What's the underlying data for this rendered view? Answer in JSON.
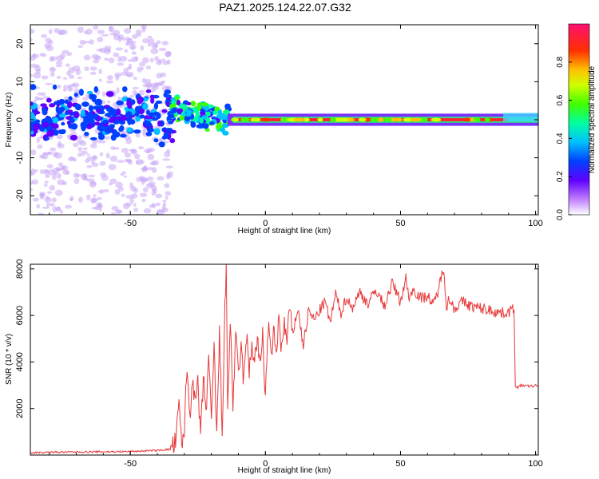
{
  "figure_title": "PAZ1.2025.124.22.07.G32",
  "chart_data": [
    {
      "type": "heatmap",
      "xlabel": "Height of straight line (km)",
      "ylabel": "Frequency (Hz)",
      "xlim": [
        -87,
        101
      ],
      "ylim": [
        -25,
        25
      ],
      "x_ticks": [
        "-50",
        "0",
        "50",
        "100"
      ],
      "y_ticks": [
        "-20",
        "-10",
        "0",
        "10",
        "20"
      ],
      "x_tick_values": [
        -50,
        0,
        50,
        100
      ],
      "y_tick_values": [
        -20,
        -10,
        0,
        10,
        20
      ],
      "colorbar": {
        "label": "Normalized spectral amplitude",
        "range": [
          0,
          1
        ],
        "ticks": [
          "0.0",
          "0.2",
          "0.4",
          "0.6",
          "0.8"
        ],
        "tick_values": [
          0.0,
          0.2,
          0.4,
          0.6,
          0.8
        ],
        "colors": [
          "#ffffff",
          "#a020f0",
          "#3000ff",
          "#0060ff",
          "#00e0ff",
          "#00ff60",
          "#40ff00",
          "#ffff00",
          "#ff8000",
          "#ff0000",
          "#ff1493"
        ]
      },
      "features": [
        {
          "x_range": [
            -87,
            -35
          ],
          "description_level": 0.25,
          "freq_center": 1,
          "freq_spread": 6
        },
        {
          "x_range": [
            -35,
            -15
          ],
          "description_level": 0.45,
          "freq_center": 3,
          "freq_spread": 2.5
        },
        {
          "x_range": [
            -15,
            101
          ],
          "description_level": 0.9,
          "freq_center": 0,
          "freq_spread": 0.5
        }
      ]
    },
    {
      "type": "line",
      "xlabel": "Height of straight line (km)",
      "ylabel": "SNR (10 * v/v)",
      "xlim": [
        -87,
        101
      ],
      "ylim": [
        0,
        8200
      ],
      "x_ticks": [
        "-50",
        "0",
        "50",
        "100"
      ],
      "y_ticks": [
        "2000",
        "4000",
        "6000",
        "8000"
      ],
      "x_tick_values": [
        -50,
        0,
        50,
        100
      ],
      "y_tick_values": [
        2000,
        4000,
        6000,
        8000
      ],
      "color": "#e8393a",
      "series": [
        {
          "x": [
            -87,
            -80,
            -70,
            -60,
            -50,
            -40,
            -35,
            -33,
            -32,
            -31,
            -30,
            -29,
            -28,
            -27,
            -26,
            -25,
            -24,
            -23,
            -22,
            -21,
            -20,
            -19,
            -18,
            -17,
            -16,
            -15,
            -14.5,
            -14,
            -13,
            -12,
            -11,
            -10,
            -9,
            -8,
            -7,
            -6,
            -5,
            -4,
            -3,
            -2,
            -1,
            0,
            1,
            2,
            3,
            4,
            5,
            6,
            7,
            8,
            9,
            10,
            12,
            14,
            16,
            18,
            20,
            22,
            24,
            26,
            28,
            30,
            32,
            35,
            38,
            41,
            44,
            47,
            50,
            52,
            53,
            55,
            58,
            60,
            62,
            64,
            66,
            67,
            68,
            70,
            73,
            76,
            80,
            84,
            88,
            91,
            92,
            92.5,
            93,
            95,
            98,
            101
          ],
          "y": [
            100,
            120,
            130,
            140,
            150,
            200,
            250,
            600,
            2300,
            300,
            1200,
            3800,
            1600,
            3500,
            2000,
            3200,
            600,
            3300,
            1800,
            4300,
            1200,
            4700,
            800,
            5200,
            1000,
            6200,
            8100,
            2000,
            5800,
            2200,
            5000,
            3500,
            4600,
            3100,
            5200,
            3500,
            4800,
            4000,
            5100,
            3600,
            5300,
            2400,
            5600,
            4200,
            5200,
            4400,
            5900,
            4500,
            5600,
            4900,
            6300,
            5200,
            6300,
            4700,
            6200,
            5800,
            6200,
            6600,
            5700,
            6900,
            6100,
            6800,
            6300,
            7000,
            6500,
            7100,
            6400,
            7400,
            6600,
            7600,
            6800,
            7100,
            6700,
            6900,
            6400,
            7100,
            8100,
            6400,
            6700,
            6300,
            6600,
            6400,
            6300,
            6200,
            6100,
            6200,
            6300,
            3000,
            2900,
            3000,
            2950,
            3000
          ]
        }
      ]
    }
  ]
}
